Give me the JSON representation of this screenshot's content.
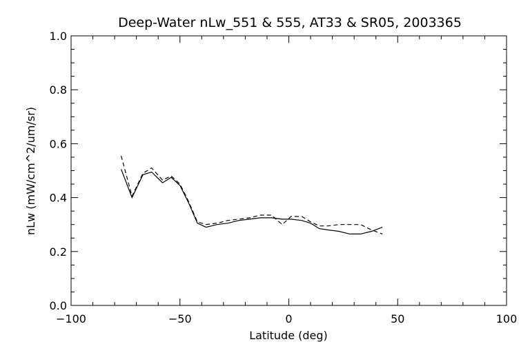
{
  "chart_data": {
    "type": "line",
    "title": "Deep-Water nLw_551 & 555, AT33 & SR05, 2003365",
    "xlabel": "Latitude (deg)",
    "ylabel": "nLw (mW/cm^2/um/sr)",
    "xlim": [
      -100,
      100
    ],
    "ylim": [
      0.0,
      1.0
    ],
    "xticks": [
      -100,
      -50,
      0,
      50,
      100
    ],
    "xtick_labels": [
      "−100",
      "−50",
      "0",
      "50",
      "100"
    ],
    "yticks": [
      0.0,
      0.2,
      0.4,
      0.6,
      0.8,
      1.0
    ],
    "ytick_labels": [
      "0.0",
      "0.2",
      "0.4",
      "0.6",
      "0.8",
      "1.0"
    ],
    "grid": false,
    "series": [
      {
        "style": "solid",
        "x": [
          -77,
          -72,
          -67,
          -63,
          -58,
          -54,
          -50,
          -46,
          -42,
          -38,
          -33,
          -28,
          -23,
          -18,
          -13,
          -8,
          -3,
          1,
          6,
          10,
          14,
          18,
          23,
          28,
          33,
          38,
          43
        ],
        "y": [
          0.505,
          0.4,
          0.485,
          0.495,
          0.455,
          0.475,
          0.445,
          0.38,
          0.305,
          0.29,
          0.3,
          0.305,
          0.315,
          0.32,
          0.325,
          0.325,
          0.32,
          0.32,
          0.315,
          0.305,
          0.285,
          0.28,
          0.275,
          0.265,
          0.265,
          0.275,
          0.29
        ]
      },
      {
        "style": "dashed",
        "x": [
          -77,
          -72,
          -67,
          -63,
          -58,
          -54,
          -50,
          -46,
          -42,
          -38,
          -33,
          -28,
          -23,
          -18,
          -13,
          -8,
          -3,
          1,
          6,
          10,
          14,
          18,
          23,
          28,
          33,
          38,
          43
        ],
        "y": [
          0.555,
          0.405,
          0.49,
          0.51,
          0.465,
          0.48,
          0.45,
          0.385,
          0.31,
          0.3,
          0.305,
          0.315,
          0.32,
          0.325,
          0.335,
          0.335,
          0.3,
          0.33,
          0.33,
          0.31,
          0.295,
          0.295,
          0.3,
          0.3,
          0.3,
          0.28,
          0.265
        ]
      }
    ]
  }
}
